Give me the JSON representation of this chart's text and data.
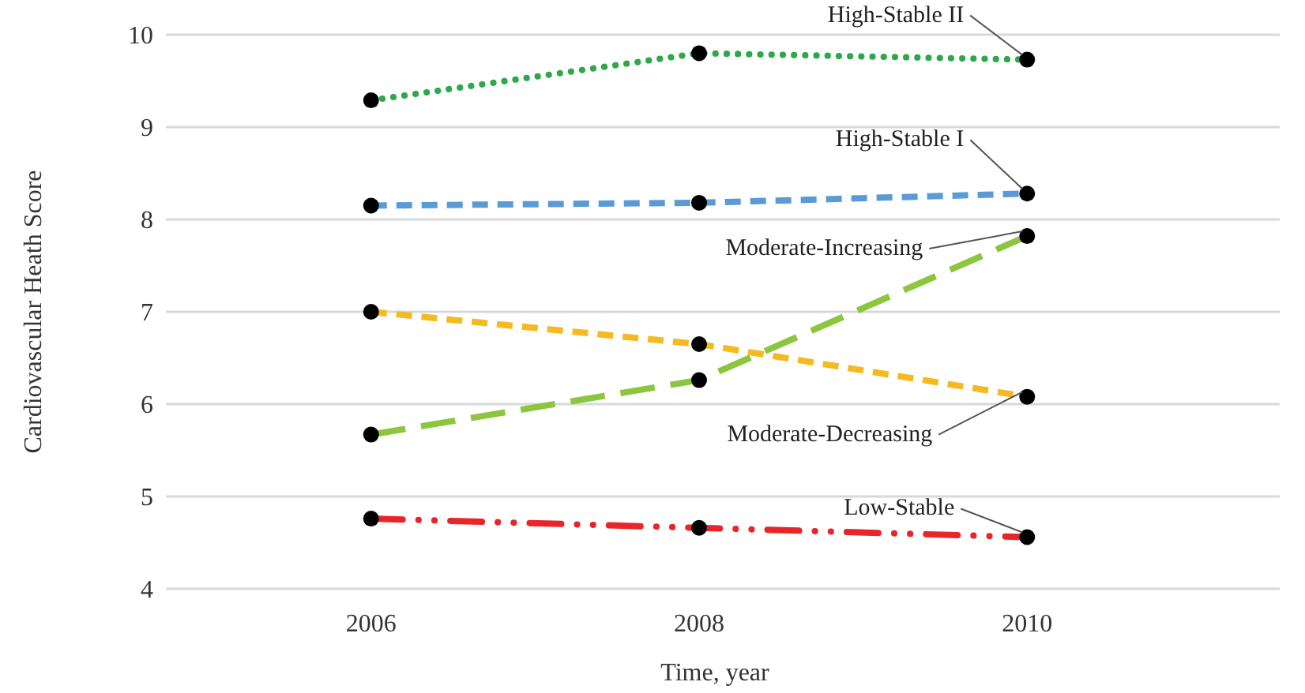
{
  "chart_data": {
    "type": "line",
    "xlabel": "Time, year",
    "ylabel": "Cardiovascular Heath Score",
    "categories": [
      "2006",
      "2008",
      "2010"
    ],
    "series": [
      {
        "name": "High-Stable II",
        "color": "#2ea84a",
        "line_style": "dotted",
        "values": [
          9.29,
          9.8,
          9.73
        ]
      },
      {
        "name": "High-Stable I",
        "color": "#5b9bd5",
        "line_style": "dashed",
        "values": [
          8.15,
          8.18,
          8.28
        ]
      },
      {
        "name": "Moderate-Increasing",
        "color": "#8cc63f",
        "line_style": "longdash",
        "values": [
          5.67,
          6.26,
          7.82
        ]
      },
      {
        "name": "Moderate-Decreasing",
        "color": "#f5b921",
        "line_style": "dashed",
        "values": [
          7.0,
          6.65,
          6.08
        ]
      },
      {
        "name": "Low-Stable",
        "color": "#e8262a",
        "line_style": "dashdotdot",
        "values": [
          4.76,
          4.66,
          4.56
        ]
      }
    ],
    "ylim": [
      4,
      10
    ],
    "yticks": [
      4,
      5,
      6,
      7,
      8,
      9,
      10
    ],
    "grid": "y",
    "legend": false,
    "marker": "circle"
  }
}
